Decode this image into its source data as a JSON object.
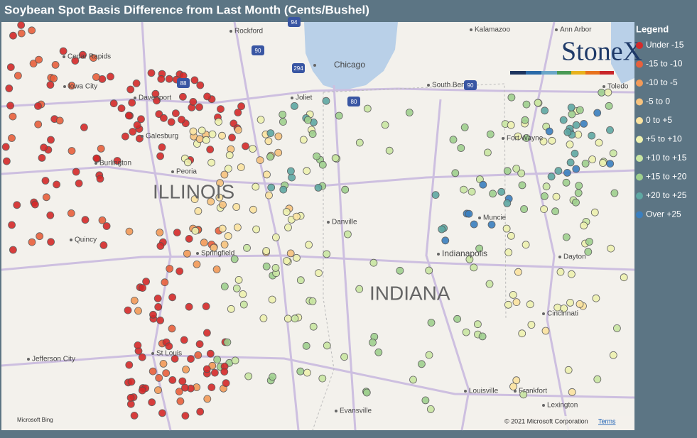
{
  "header": {
    "title": "Soybean Spot Basis Difference from Last Month (Cents/Bushel)"
  },
  "legend": {
    "title": "Legend",
    "items": [
      {
        "label": "Under -15",
        "color": "#d42a2a"
      },
      {
        "label": "-15 to -10",
        "color": "#e8603c"
      },
      {
        "label": "-10 to -5",
        "color": "#f29a58"
      },
      {
        "label": "-5 to 0",
        "color": "#f7c37e"
      },
      {
        "label": "0 to +5",
        "color": "#fbe3a0"
      },
      {
        "label": "+5 to +10",
        "color": "#eef2b0"
      },
      {
        "label": "+10 to +15",
        "color": "#c9e6a2"
      },
      {
        "label": "+15 to +20",
        "color": "#9fd08e"
      },
      {
        "label": "+20 to +25",
        "color": "#5fa8a3"
      },
      {
        "label": "Over +25",
        "color": "#3a7fbf"
      }
    ]
  },
  "map": {
    "cities": [
      "Rockford",
      "Kalamazoo",
      "Ann Arbor",
      "Cedar Rapids",
      "Chicago",
      "Iowa City",
      "Davenport",
      "South Bend",
      "Toledo",
      "Joliet",
      "Fort Wayne",
      "Galesburg",
      "Burlington",
      "Peoria",
      "Danville",
      "Muncie",
      "Quincy",
      "Springfield",
      "Indianapolis",
      "Dayton",
      "Cincinnati",
      "Jefferson City",
      "St Louis",
      "Louisville",
      "Frankfort",
      "Evansville",
      "Lexington"
    ],
    "states": [
      "ILLINOIS",
      "INDIANA"
    ],
    "shields": [
      "90",
      "294",
      "88",
      "80",
      "90",
      "94"
    ]
  },
  "logo": "StoneX",
  "footer": {
    "provider": "Microsoft Bing",
    "copyright": "© 2021 Microsoft Corporation",
    "terms": "Terms"
  }
}
